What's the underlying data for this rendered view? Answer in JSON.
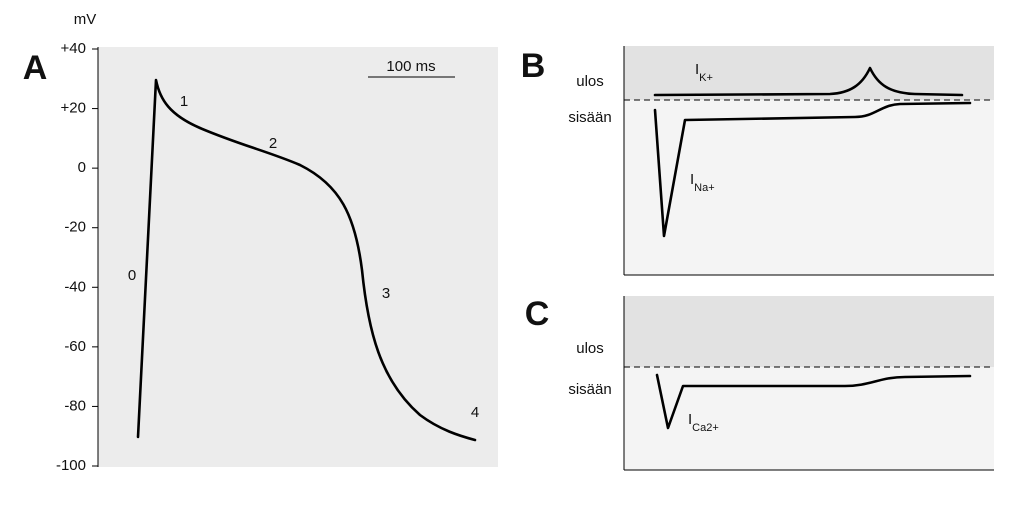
{
  "panel_a": {
    "label": "A",
    "unit": "mV",
    "yticks": [
      "+40",
      "+20",
      "0",
      "-20",
      "-40",
      "-60",
      "-80",
      "-100"
    ],
    "phases": [
      "0",
      "1",
      "2",
      "3",
      "4"
    ],
    "scale_bar": "100 ms"
  },
  "panel_b": {
    "label": "B",
    "outward": "ulos",
    "inward": "sisään",
    "currents": [
      {
        "symbol": "I",
        "subscript": "K+"
      },
      {
        "symbol": "I",
        "subscript": "Na+"
      }
    ]
  },
  "panel_c": {
    "label": "C",
    "outward": "ulos",
    "inward": "sisään",
    "currents": [
      {
        "symbol": "I",
        "subscript": "Ca2+"
      }
    ]
  }
}
